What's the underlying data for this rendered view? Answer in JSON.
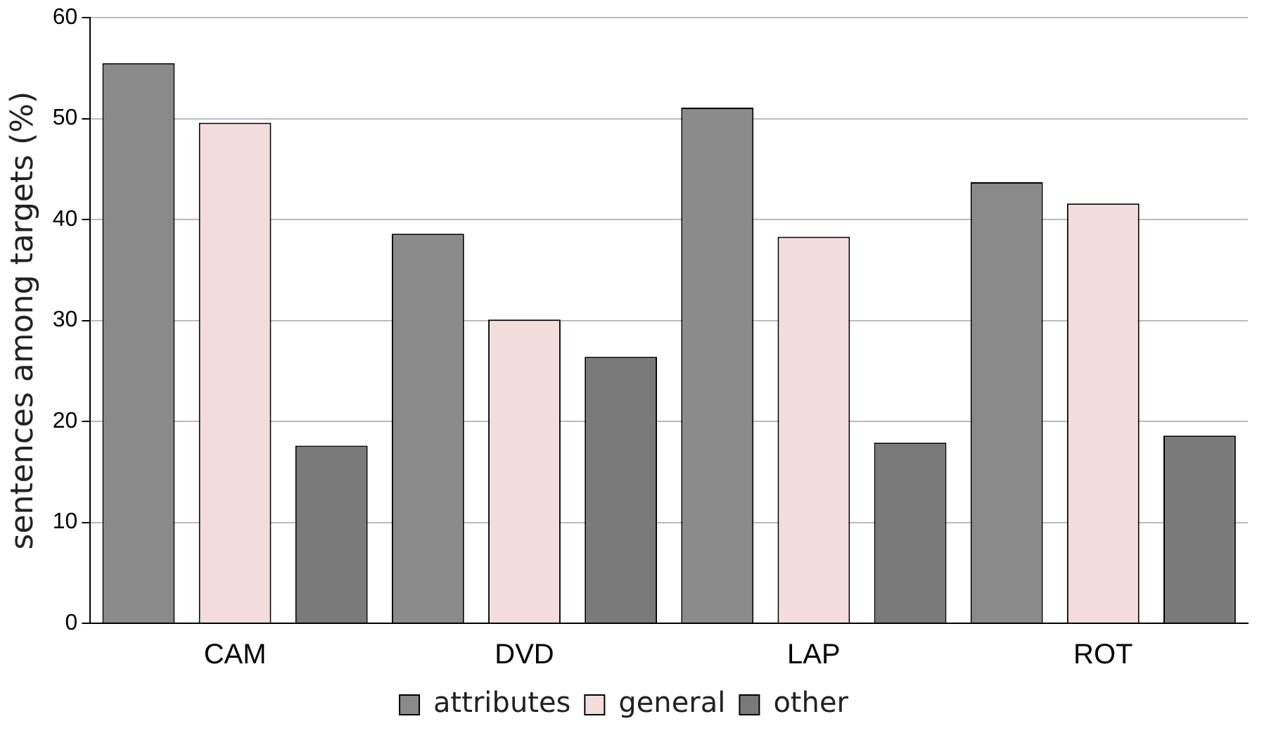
{
  "chart_data": {
    "type": "bar",
    "ylabel": "sentences among targets (%)",
    "categories": [
      "CAM",
      "DVD",
      "LAP",
      "ROT"
    ],
    "series": [
      {
        "name": "attributes",
        "color": "#8a8a8a",
        "values": [
          55.5,
          38.6,
          51.1,
          43.7
        ]
      },
      {
        "name": "general",
        "color": "#f2dcdc",
        "values": [
          49.6,
          30.1,
          38.3,
          41.6
        ]
      },
      {
        "name": "other",
        "color": "#7a7a7a",
        "values": [
          17.6,
          26.4,
          17.9,
          18.6
        ]
      }
    ],
    "ylim": [
      0,
      60
    ],
    "yticks": [
      0,
      10,
      20,
      30,
      40,
      50,
      60
    ],
    "grid": "y",
    "legend": "bottom"
  }
}
